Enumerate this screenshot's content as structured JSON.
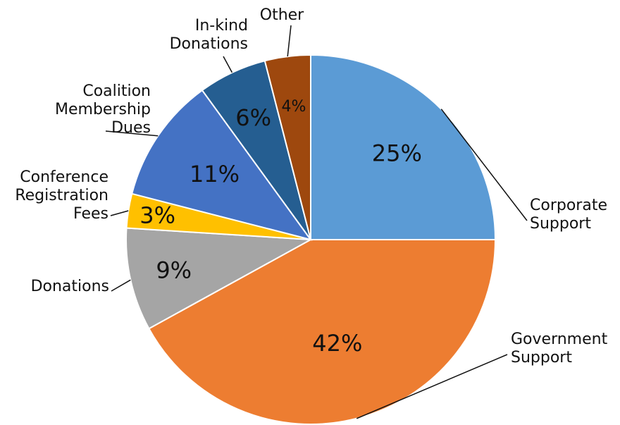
{
  "chart_data": {
    "type": "pie",
    "title": "",
    "slices": [
      {
        "label": "Corporate Support",
        "label_lines": [
          "Corporate",
          "Support"
        ],
        "value": 25,
        "value_label": "25%",
        "color": "#5B9BD5"
      },
      {
        "label": "Government Support",
        "label_lines": [
          "Government",
          "Support"
        ],
        "value": 42,
        "value_label": "42%",
        "color": "#ED7D31"
      },
      {
        "label": "Donations",
        "label_lines": [
          "Donations"
        ],
        "value": 9,
        "value_label": "9%",
        "color": "#A5A5A5"
      },
      {
        "label": "Conference Registration Fees",
        "label_lines": [
          "Conference",
          "Registration",
          "Fees"
        ],
        "value": 3,
        "value_label": "3%",
        "color": "#FFC000"
      },
      {
        "label": "Coalition Membership Dues",
        "label_lines": [
          "Coalition",
          "Membership",
          "Dues"
        ],
        "value": 11,
        "value_label": "11%",
        "color": "#4472C4"
      },
      {
        "label": "In-kind Donations",
        "label_lines": [
          "In-kind",
          "Donations"
        ],
        "value": 6,
        "value_label": "6%",
        "color": "#255E91"
      },
      {
        "label": "Other",
        "label_lines": [
          "Other"
        ],
        "value": 4,
        "value_label": "4%",
        "color": "#9E480E"
      }
    ],
    "start_angle_deg": 0,
    "direction": "clockwise",
    "legend": "none"
  }
}
